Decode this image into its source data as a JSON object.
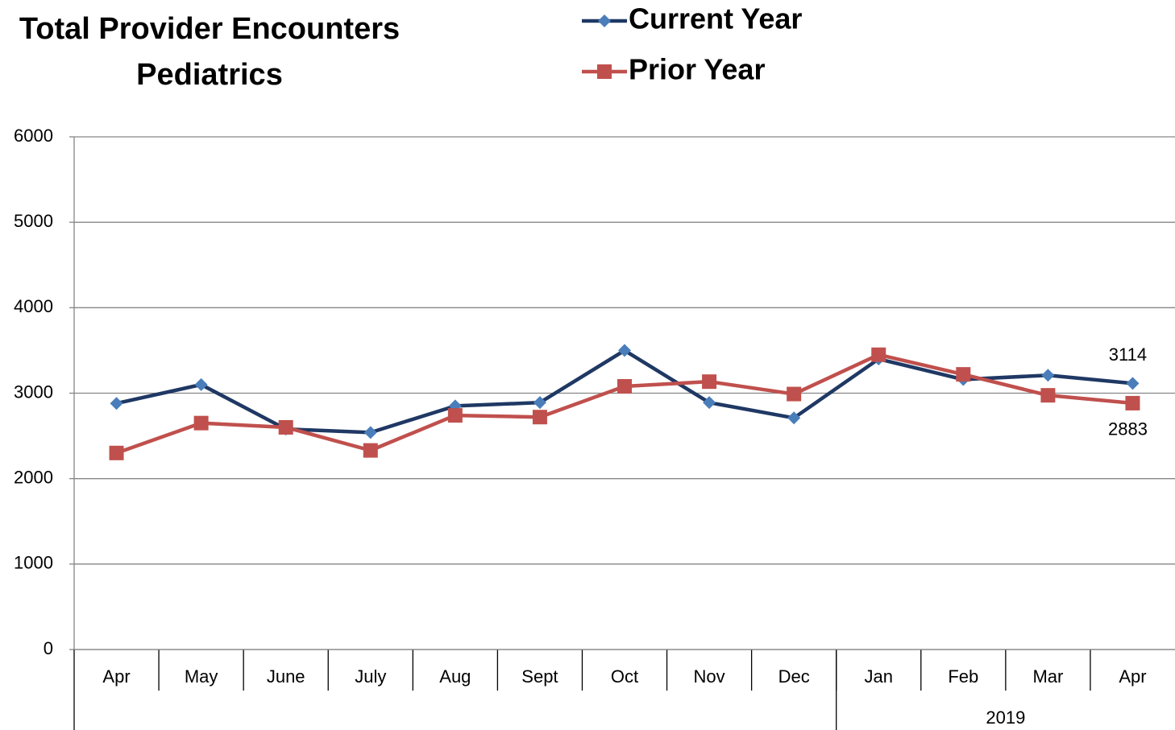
{
  "chart_data": {
    "type": "line",
    "title": "Total Provider Encounters",
    "subtitle": "Pediatrics",
    "categories": [
      "Apr",
      "May",
      "June",
      "July",
      "Aug",
      "Sept",
      "Oct",
      "Nov",
      "Dec",
      "Jan",
      "Feb",
      "Mar",
      "Apr"
    ],
    "category_groups": [
      {
        "name": "2019",
        "start": 9
      }
    ],
    "series": [
      {
        "name": "Current Year",
        "color": "#1f3864",
        "marker": "diamond",
        "marker_color": "#4a7ebb",
        "values": [
          2880,
          3100,
          2580,
          2540,
          2850,
          2890,
          3500,
          2890,
          2710,
          3400,
          3160,
          3210,
          3114
        ]
      },
      {
        "name": "Prior Year",
        "color": "#c0504d",
        "marker": "square",
        "marker_color": "#c0504d",
        "values": [
          2300,
          2650,
          2600,
          2330,
          2740,
          2720,
          3080,
          3135,
          2990,
          3450,
          3220,
          2975,
          2883
        ]
      }
    ],
    "data_labels": "last",
    "ylim": [
      0,
      6000
    ],
    "yticks": [
      0,
      1000,
      2000,
      3000,
      4000,
      5000,
      6000
    ],
    "grid": true,
    "legend": "top"
  }
}
